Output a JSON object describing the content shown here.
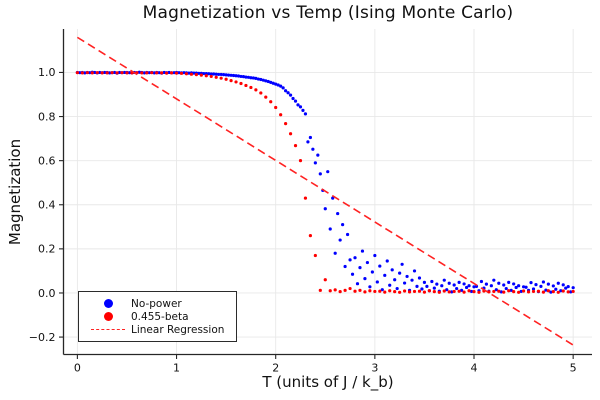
{
  "chart_data": {
    "type": "scatter",
    "title": "Magnetization vs Temp (Ising Monte Carlo)",
    "xlabel": "T (units of J / k_b)",
    "ylabel": "Magnetization",
    "xlim": [
      -0.14,
      5.19
    ],
    "ylim": [
      -0.279,
      1.197
    ],
    "x_ticks": [
      0,
      1,
      2,
      3,
      4,
      5
    ],
    "x_tick_labels": [
      "0",
      "1",
      "2",
      "3",
      "4",
      "5"
    ],
    "y_ticks": [
      -0.2,
      0.0,
      0.2,
      0.4,
      0.6,
      0.8,
      1.0
    ],
    "y_tick_labels": [
      "−0.2",
      "0.0",
      "0.2",
      "0.4",
      "0.6",
      "0.8",
      "1.0"
    ],
    "grid": true,
    "grid_color": "#e8e8e8",
    "spine_color": "#262626",
    "text_color": "#111111",
    "legend_position": "lower left",
    "series": [
      {
        "name": "No-power",
        "type": "scatter",
        "color": "#0000ff",
        "marker": "circle",
        "x_start": 0.0,
        "x_step": 0.025,
        "y": [
          1.0,
          0.999,
          1.0,
          0.998,
          1.0,
          0.999,
          1.001,
          1.0,
          0.998,
          1.0,
          0.999,
          1.0,
          1.0,
          0.998,
          0.999,
          1.0,
          0.997,
          1.0,
          0.999,
          1.0,
          1.0,
          0.999,
          0.998,
          1.0,
          0.999,
          1.001,
          1.0,
          0.998,
          1.0,
          0.999,
          1.0,
          0.998,
          1.0,
          0.999,
          0.997,
          1.0,
          0.999,
          1.0,
          0.998,
          0.999,
          1.0,
          0.999,
          0.998,
          0.999,
          0.998,
          0.997,
          0.998,
          0.997,
          0.997,
          0.996,
          0.996,
          0.995,
          0.995,
          0.994,
          0.993,
          0.993,
          0.992,
          0.991,
          0.991,
          0.99,
          0.989,
          0.988,
          0.987,
          0.986,
          0.985,
          0.984,
          0.982,
          0.981,
          0.979,
          0.978,
          0.976,
          0.975,
          0.973,
          0.97,
          0.968,
          0.965,
          0.962,
          0.959,
          0.955,
          0.951,
          0.947,
          0.943,
          0.938,
          0.93,
          0.917,
          0.908,
          0.897,
          0.882,
          0.87,
          0.853,
          0.844,
          0.828,
          0.812,
          0.685,
          0.705,
          0.652,
          0.59,
          0.625,
          0.54,
          0.465,
          0.382,
          0.55,
          0.29,
          0.43,
          0.18,
          0.36,
          0.24,
          0.31,
          0.12,
          0.265,
          0.15,
          0.085,
          0.16,
          0.042,
          0.115,
          0.19,
          0.065,
          0.138,
          0.028,
          0.095,
          0.17,
          0.05,
          0.122,
          0.015,
          0.08,
          0.145,
          0.035,
          0.105,
          0.06,
          0.02,
          0.09,
          0.13,
          0.045,
          0.075,
          0.012,
          0.058,
          0.1,
          0.03,
          0.068,
          0.018,
          0.048,
          0.03,
          0.01,
          0.052,
          0.022,
          0.04,
          0.008,
          0.033,
          0.058,
          0.015,
          0.044,
          0.005,
          0.036,
          0.02,
          0.048,
          0.012,
          0.041,
          0.025,
          0.033,
          0.007,
          0.028,
          0.03,
          0.01,
          0.052,
          0.022,
          0.04,
          0.008,
          0.033,
          0.058,
          0.015,
          0.044,
          0.005,
          0.036,
          0.02,
          0.048,
          0.012,
          0.041,
          0.025,
          0.033,
          0.007,
          0.028,
          0.026,
          0.012,
          0.047,
          0.018,
          0.038,
          0.006,
          0.03,
          0.05,
          0.013,
          0.04,
          0.004,
          0.032,
          0.017,
          0.044,
          0.01,
          0.037,
          0.022,
          0.029,
          0.005,
          0.024
        ]
      },
      {
        "name": "0.455-beta",
        "type": "scatter",
        "color": "#ff0000",
        "marker": "circle",
        "x_start": 0.0,
        "x_step": 0.05,
        "y": [
          0.999,
          0.998,
          0.999,
          0.998,
          0.999,
          0.998,
          0.998,
          0.999,
          0.998,
          0.999,
          0.998,
          0.998,
          0.999,
          0.998,
          0.998,
          0.999,
          0.998,
          0.998,
          0.997,
          0.998,
          0.997,
          0.996,
          0.994,
          0.992,
          0.99,
          0.988,
          0.985,
          0.982,
          0.978,
          0.974,
          0.969,
          0.963,
          0.957,
          0.95,
          0.941,
          0.932,
          0.921,
          0.907,
          0.888,
          0.867,
          0.841,
          0.808,
          0.768,
          0.722,
          0.668,
          0.6,
          0.43,
          0.26,
          0.17,
          0.012,
          0.06,
          0.01,
          0.014,
          0.006,
          0.012,
          0.02,
          0.008,
          0.012,
          0.005,
          0.01,
          0.007,
          0.008,
          0.004,
          0.01,
          0.006,
          0.003,
          0.009,
          0.005,
          0.007,
          0.008,
          0.004,
          0.01,
          0.006,
          0.003,
          0.009,
          0.005,
          0.007,
          0.008,
          0.004,
          0.01,
          0.006,
          0.003,
          0.009,
          0.005,
          0.007,
          0.008,
          0.004,
          0.01,
          0.006,
          0.003,
          0.009,
          0.005,
          0.007,
          0.008,
          0.004,
          0.01,
          0.006,
          0.003,
          0.009,
          0.005,
          0.007
        ]
      },
      {
        "name": "Linear Regression",
        "type": "line",
        "style": "dashed",
        "color": "#ff2222",
        "x": [
          0.0,
          5.0
        ],
        "y": [
          1.159,
          -0.236
        ]
      }
    ]
  }
}
